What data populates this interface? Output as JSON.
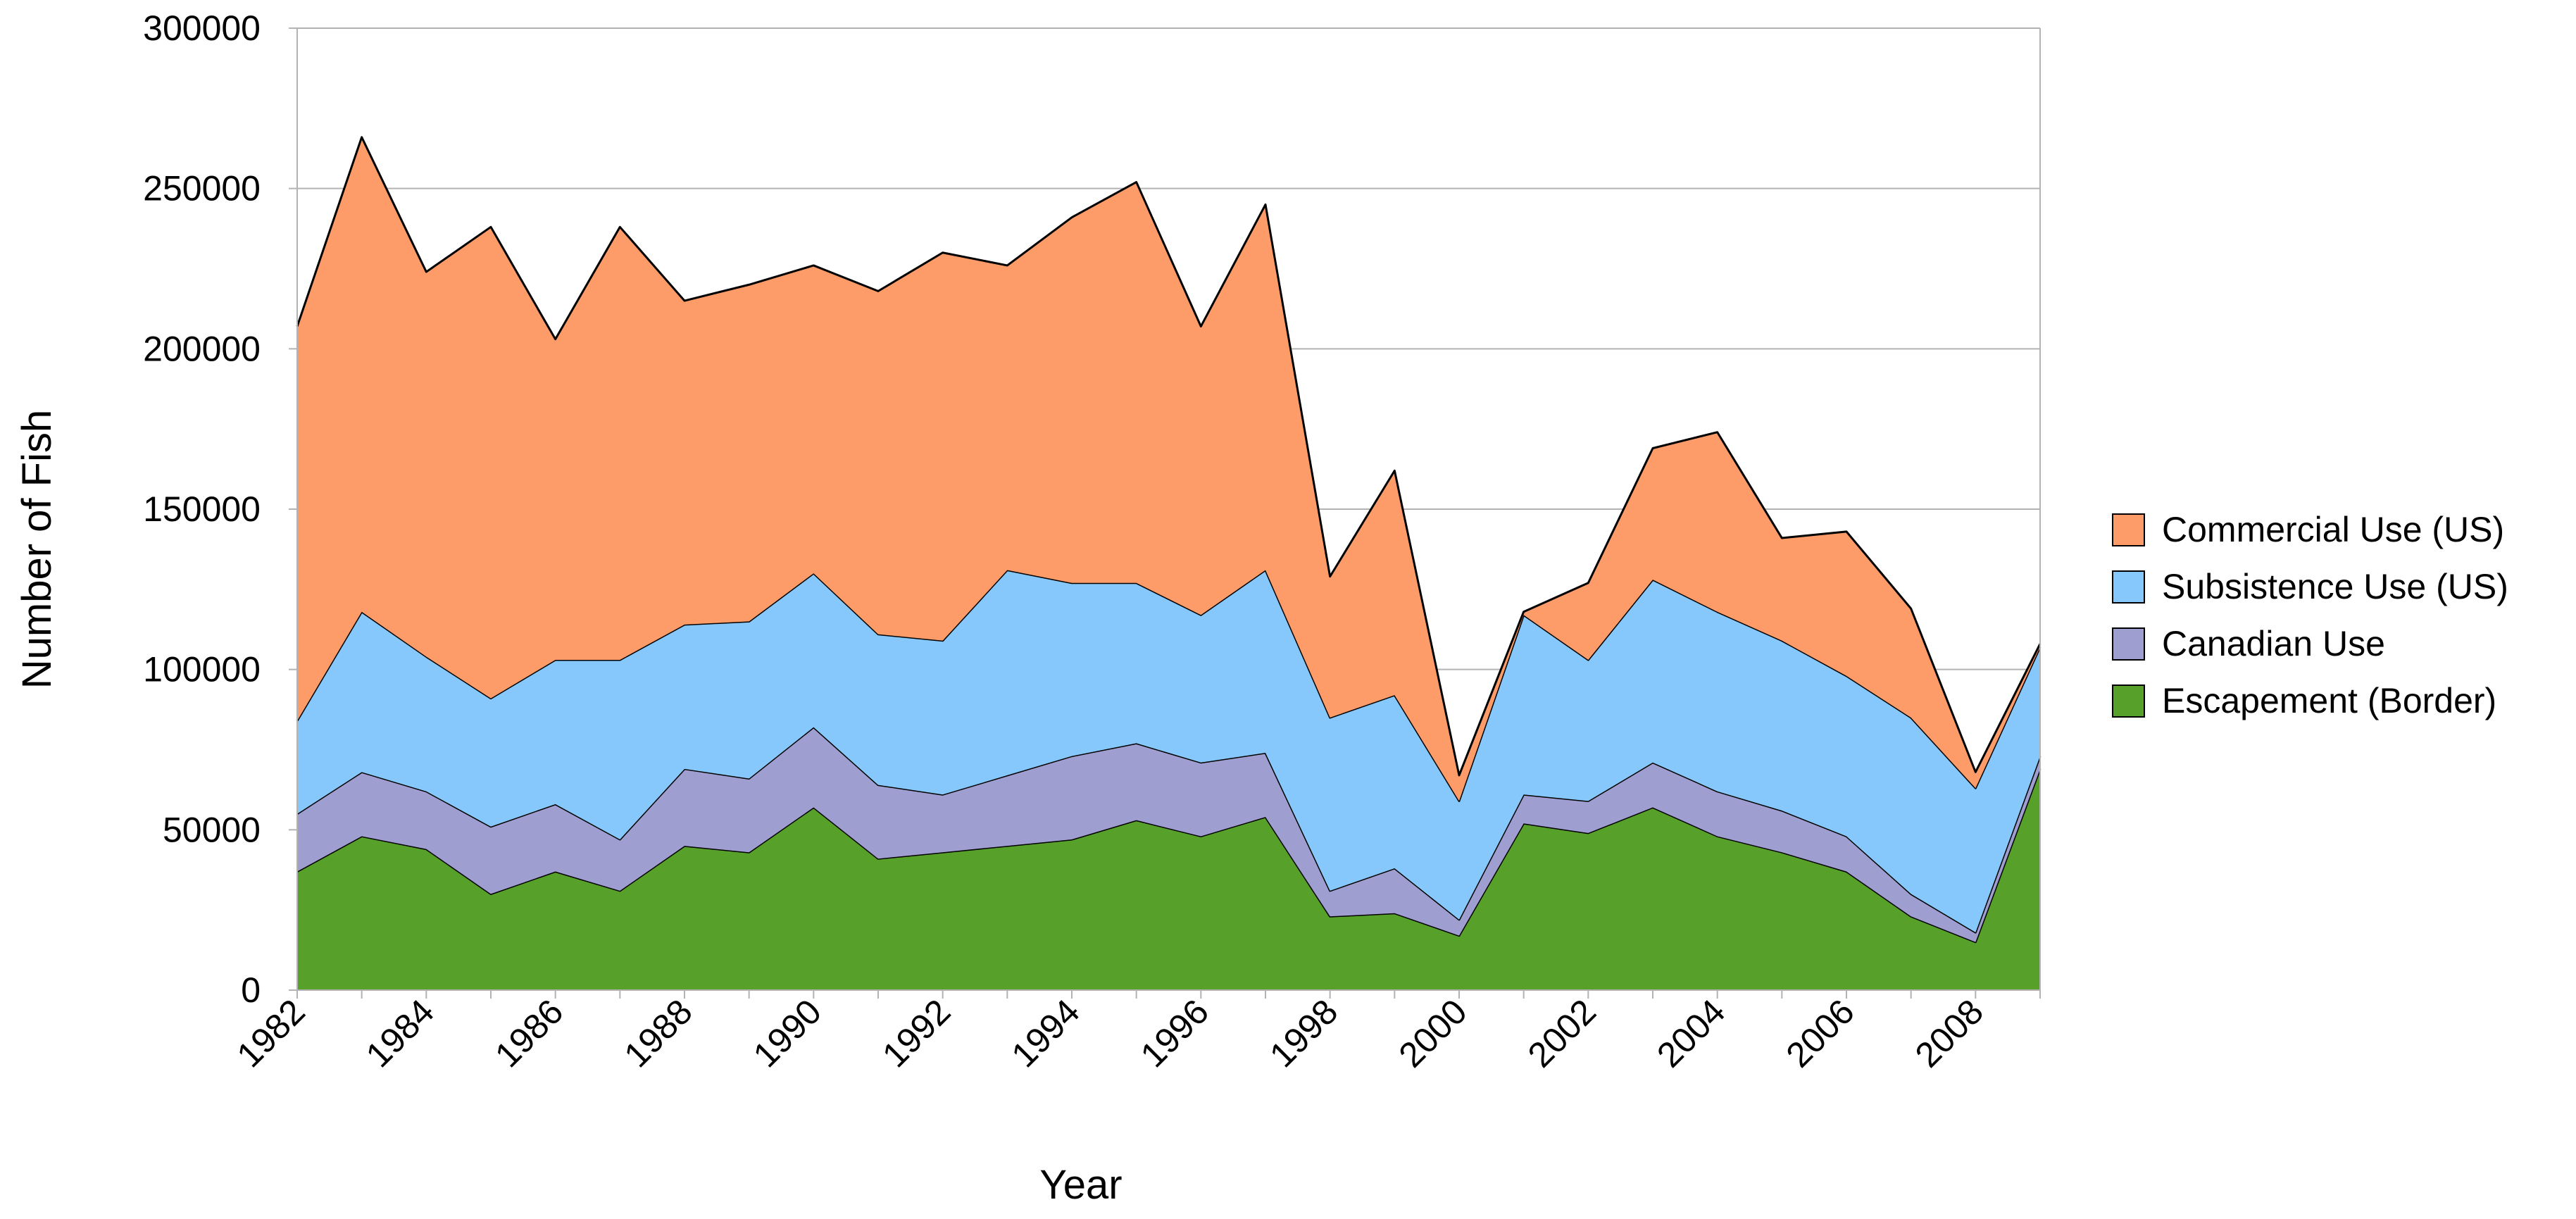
{
  "chart_data": {
    "type": "area",
    "stacked": true,
    "xlabel": "Year",
    "ylabel": "Number of Fish",
    "ylim": [
      0,
      300000
    ],
    "yticks": [
      0,
      50000,
      100000,
      150000,
      200000,
      250000,
      300000
    ],
    "ytick_labels": [
      "0",
      "50000",
      "100000",
      "150000",
      "200000",
      "250000",
      "300000"
    ],
    "xticks": [
      1982,
      1984,
      1986,
      1988,
      1990,
      1992,
      1994,
      1996,
      1998,
      2000,
      2002,
      2004,
      2006,
      2008
    ],
    "xtick_labels": [
      "1982",
      "1984",
      "1986",
      "1988",
      "1990",
      "1992",
      "1994",
      "1996",
      "1998",
      "2000",
      "2002",
      "2004",
      "2006",
      "2008"
    ],
    "grid": true,
    "legend_position": "right",
    "x": [
      1982,
      1983,
      1984,
      1985,
      1986,
      1987,
      1988,
      1989,
      1990,
      1991,
      1992,
      1993,
      1994,
      1995,
      1996,
      1997,
      1998,
      1999,
      2000,
      2001,
      2002,
      2003,
      2004,
      2005,
      2006,
      2007,
      2008,
      2009
    ],
    "series": [
      {
        "name": "Escapement (Border)",
        "color": "#57a02a",
        "values": [
          37000,
          48000,
          44000,
          30000,
          37000,
          31000,
          45000,
          43000,
          57000,
          41000,
          43000,
          45000,
          47000,
          53000,
          48000,
          54000,
          23000,
          24000,
          17000,
          52000,
          49000,
          57000,
          48000,
          43000,
          37000,
          23000,
          15000,
          69000
        ]
      },
      {
        "name": "Canadian Use",
        "color": "#9e9ed0",
        "values": [
          18000,
          20000,
          18000,
          21000,
          21000,
          16000,
          24000,
          23000,
          25000,
          23000,
          18000,
          22000,
          26000,
          24000,
          23000,
          20000,
          8000,
          14000,
          5000,
          9000,
          10000,
          14000,
          14000,
          13000,
          11000,
          7000,
          3000,
          4000
        ]
      },
      {
        "name": "Subsistence Use (US)",
        "color": "#86c8fb",
        "values": [
          29000,
          50000,
          42000,
          40000,
          45000,
          56000,
          45000,
          49000,
          48000,
          47000,
          48000,
          64000,
          54000,
          50000,
          46000,
          57000,
          54000,
          54000,
          37000,
          56000,
          44000,
          57000,
          56000,
          53000,
          50000,
          55000,
          45000,
          34000
        ]
      },
      {
        "name": "Commercial Use (US)",
        "color": "#fd9b69",
        "values": [
          123000,
          148000,
          120000,
          147000,
          100000,
          135000,
          101000,
          105000,
          96000,
          107000,
          121000,
          95000,
          114000,
          125000,
          90000,
          114000,
          44000,
          70000,
          8000,
          1000,
          24000,
          41000,
          56000,
          32000,
          45000,
          34000,
          5000,
          1000
        ]
      }
    ],
    "legend_order": [
      "Commercial Use (US)",
      "Subsistence Use (US)",
      "Canadian Use",
      "Escapement (Border)"
    ]
  }
}
